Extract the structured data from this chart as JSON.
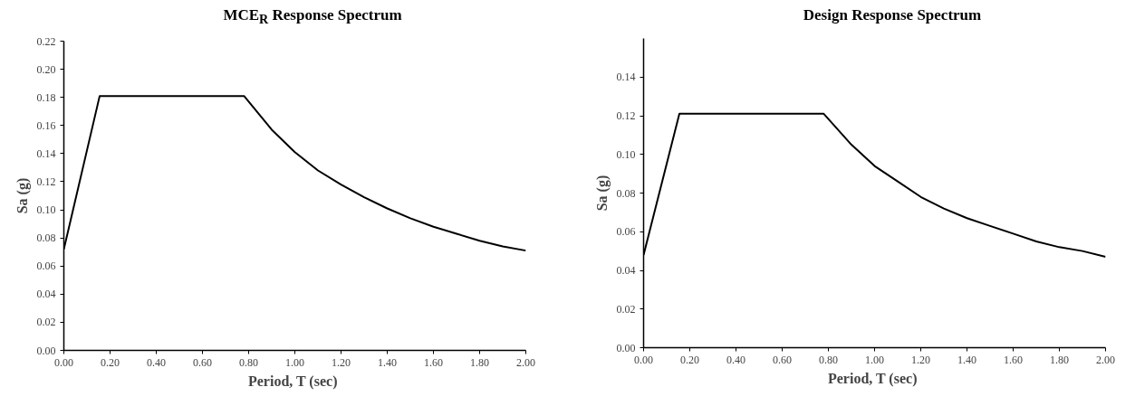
{
  "chart_data": [
    {
      "type": "line",
      "title": "MCE$_{R}$ Response Spectrum",
      "xlabel": "Period,  T (sec)",
      "ylabel": "Sa (g)",
      "x": [
        0,
        0.155,
        0.78,
        0.9,
        1.0,
        1.1,
        1.2,
        1.3,
        1.4,
        1.5,
        1.6,
        1.7,
        1.8,
        1.9,
        2.0
      ],
      "series": [
        {
          "color": "#000000",
          "values": [
            0.072,
            0.181,
            0.181,
            0.157,
            0.141,
            0.128,
            0.118,
            0.109,
            0.101,
            0.094,
            0.088,
            0.083,
            0.078,
            0.074,
            0.071
          ]
        }
      ],
      "xlim": [
        0,
        2
      ],
      "ylim": [
        0,
        0.22
      ],
      "xticks": [
        {
          "value": 0,
          "label": "0.00"
        },
        {
          "value": 0.2,
          "label": "0.20"
        },
        {
          "value": 0.4,
          "label": "0.40"
        },
        {
          "value": 0.6,
          "label": "0.60"
        },
        {
          "value": 0.8,
          "label": "0.80"
        },
        {
          "value": 1.0,
          "label": "1.00"
        },
        {
          "value": 1.2,
          "label": "1.20"
        },
        {
          "value": 1.4,
          "label": "1.40"
        },
        {
          "value": 1.6,
          "label": "1.60"
        },
        {
          "value": 1.8,
          "label": "1.80"
        },
        {
          "value": 2.0,
          "label": "2.00"
        }
      ],
      "yticks": [
        {
          "value": 0,
          "label": "0.00"
        },
        {
          "value": 0.02,
          "label": "0.02"
        },
        {
          "value": 0.04,
          "label": "0.04"
        },
        {
          "value": 0.06,
          "label": "0.06"
        },
        {
          "value": 0.08,
          "label": "0.08"
        },
        {
          "value": 0.1,
          "label": "0.10"
        },
        {
          "value": 0.12,
          "label": "0.12"
        },
        {
          "value": 0.14,
          "label": "0.14"
        },
        {
          "value": 0.16,
          "label": "0.16"
        },
        {
          "value": 0.18,
          "label": "0.18"
        },
        {
          "value": 0.2,
          "label": "0.20"
        },
        {
          "value": 0.22,
          "label": "0.22"
        }
      ],
      "grid": false,
      "marker": "none",
      "line_style": "solid"
    },
    {
      "type": "line",
      "title": "Design Response Spectrum",
      "xlabel": "Period,  T (sec)",
      "ylabel": "Sa (g)",
      "x": [
        0,
        0.155,
        0.78,
        0.9,
        1.0,
        1.1,
        1.2,
        1.3,
        1.4,
        1.5,
        1.6,
        1.7,
        1.8,
        1.9,
        2.0
      ],
      "series": [
        {
          "color": "#000000",
          "values": [
            0.048,
            0.121,
            0.121,
            0.105,
            0.094,
            0.086,
            0.078,
            0.072,
            0.067,
            0.063,
            0.059,
            0.055,
            0.052,
            0.05,
            0.047
          ]
        }
      ],
      "xlim": [
        0,
        2
      ],
      "ylim": [
        0,
        0.16
      ],
      "xticks": [
        {
          "value": 0,
          "label": "0.00"
        },
        {
          "value": 0.2,
          "label": "0.20"
        },
        {
          "value": 0.4,
          "label": "0.40"
        },
        {
          "value": 0.6,
          "label": "0.60"
        },
        {
          "value": 0.8,
          "label": "0.80"
        },
        {
          "value": 1.0,
          "label": "1.00"
        },
        {
          "value": 1.2,
          "label": "1.20"
        },
        {
          "value": 1.4,
          "label": "1.40"
        },
        {
          "value": 1.6,
          "label": "1.60"
        },
        {
          "value": 1.8,
          "label": "1.80"
        },
        {
          "value": 2.0,
          "label": "2.00"
        }
      ],
      "yticks": [
        {
          "value": 0,
          "label": "0.00"
        },
        {
          "value": 0.02,
          "label": "0.02"
        },
        {
          "value": 0.04,
          "label": "0.04"
        },
        {
          "value": 0.06,
          "label": "0.06"
        },
        {
          "value": 0.08,
          "label": "0.08"
        },
        {
          "value": 0.1,
          "label": "0.10"
        },
        {
          "value": 0.12,
          "label": "0.12"
        },
        {
          "value": 0.14,
          "label": "0.14"
        }
      ],
      "grid": false,
      "marker": "none",
      "line_style": "solid"
    }
  ]
}
